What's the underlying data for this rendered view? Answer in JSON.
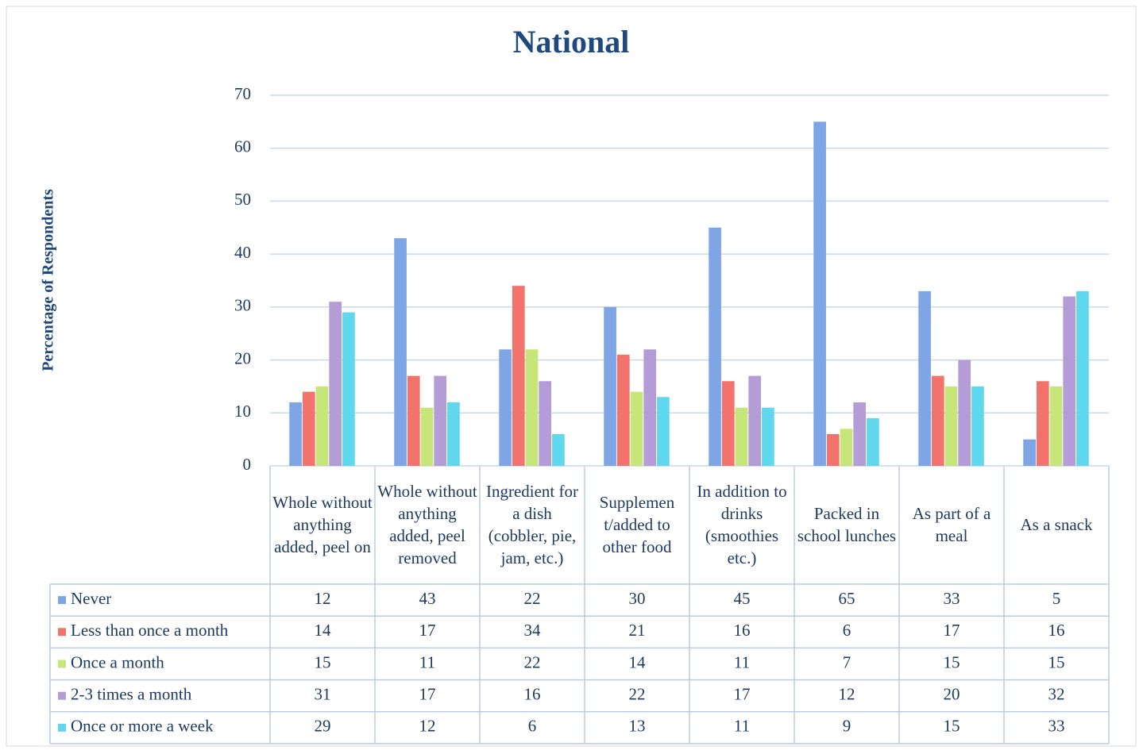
{
  "chart_data": {
    "type": "bar",
    "title": "National",
    "y_label": "Percentage of Respondents",
    "categories": [
      "Whole without anything added, peel on",
      "Whole without anything added, peel removed",
      "Ingredient for a dish (cobbler, pie, jam, etc.)",
      "Supplemen t/added to other food",
      "In addition to drinks (smoothies etc.)",
      "Packed in school lunches",
      "As part of a meal",
      "As a snack"
    ],
    "series": [
      {
        "name": "Never",
        "color": "#7fa6e4",
        "values": [
          12,
          43,
          22,
          30,
          45,
          65,
          33,
          5
        ]
      },
      {
        "name": "Less than once a month",
        "color": "#f2736c",
        "values": [
          14,
          17,
          34,
          21,
          16,
          6,
          17,
          16
        ]
      },
      {
        "name": "Once a month",
        "color": "#c6e67a",
        "values": [
          15,
          11,
          22,
          14,
          11,
          7,
          15,
          15
        ]
      },
      {
        "name": "2-3 times a month",
        "color": "#b49cd6",
        "values": [
          31,
          17,
          16,
          22,
          17,
          12,
          20,
          32
        ]
      },
      {
        "name": "Once or more a week",
        "color": "#5fd8ee",
        "values": [
          29,
          12,
          6,
          13,
          11,
          9,
          15,
          33
        ]
      }
    ],
    "ylim": [
      0,
      70
    ],
    "yticks": [
      0,
      10,
      20,
      30,
      40,
      50,
      60,
      70
    ],
    "grid": true
  }
}
